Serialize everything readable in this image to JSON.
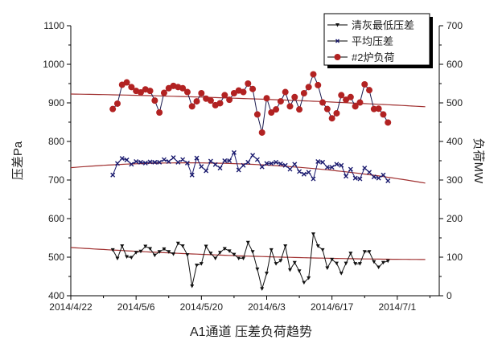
{
  "chart_data": {
    "type": "line",
    "title": "A1通道 压差负荷趋势",
    "xlabel": "",
    "ylabel": "压差Pa",
    "ylabel_right": "负荷MW",
    "xlim": [
      "2014-04-22",
      "2014-07-10"
    ],
    "ylim": [
      400,
      1100
    ],
    "ylim_right": [
      0,
      700
    ],
    "x_ticks": [
      "2014/4/22",
      "2014/5/6",
      "2014/5/20",
      "2014/6/3",
      "2014/6/17",
      "2014/7/1"
    ],
    "x_tick_dates": [
      "2014-04-22",
      "2014-05-06",
      "2014-05-20",
      "2014-06-03",
      "2014-06-17",
      "2014-07-01"
    ],
    "y_ticks": [
      400,
      500,
      600,
      700,
      800,
      900,
      1000,
      1100
    ],
    "y_ticks_right": [
      0,
      100,
      200,
      300,
      400,
      500,
      600,
      700
    ],
    "grid": false,
    "legend_placement": "top-right",
    "start_date": "2014-05-01",
    "series": [
      {
        "name": "清灰最低压差",
        "axis": "left",
        "marker": "triangle-down",
        "color": "#111111",
        "values": [
          519,
          497,
          529,
          501,
          499,
          512,
          515,
          528,
          522,
          505,
          514,
          521,
          514,
          508,
          536,
          529,
          506,
          425,
          479,
          483,
          528,
          510,
          497,
          512,
          522,
          516,
          507,
          497,
          497,
          538,
          514,
          469,
          418,
          458,
          519,
          483,
          491,
          529,
          467,
          486,
          464,
          434,
          446,
          560,
          529,
          519,
          472,
          494,
          484,
          458,
          484,
          510,
          483,
          483,
          514,
          514,
          488,
          474,
          486,
          490
        ],
        "trend": {
          "dates": [
            "2014-04-22",
            "2014-06-01",
            "2014-07-07"
          ],
          "values": [
            525,
            502,
            494
          ],
          "color": "#a03030"
        }
      },
      {
        "name": "平均压差",
        "axis": "left",
        "marker": "x",
        "color": "#1a1a6e",
        "values": [
          713,
          743,
          756,
          752,
          741,
          748,
          746,
          744,
          747,
          746,
          746,
          753,
          748,
          758,
          746,
          753,
          744,
          713,
          757,
          735,
          724,
          749,
          740,
          731,
          750,
          750,
          771,
          726,
          738,
          746,
          764,
          753,
          734,
          743,
          743,
          746,
          742,
          738,
          728,
          741,
          722,
          715,
          720,
          703,
          748,
          746,
          733,
          733,
          741,
          738,
          710,
          728,
          705,
          703,
          731,
          720,
          708,
          705,
          713,
          698
        ],
        "trend": {
          "dates": [
            "2014-04-22",
            "2014-06-01",
            "2014-07-07"
          ],
          "values": [
            732,
            740,
            692
          ],
          "color": "#a03030"
        }
      },
      {
        "name": "#2炉负荷",
        "axis": "right",
        "marker": "circle",
        "color": "#b22222",
        "line_color": "#1a1a4e",
        "values": [
          484,
          498,
          547,
          553,
          541,
          531,
          527,
          535,
          531,
          506,
          475,
          526,
          538,
          544,
          541,
          538,
          528,
          491,
          504,
          525,
          511,
          506,
          494,
          499,
          520,
          508,
          525,
          532,
          528,
          550,
          536,
          470,
          423,
          512,
          475,
          483,
          504,
          528,
          491,
          515,
          483,
          525,
          541,
          574,
          546,
          501,
          484,
          460,
          473,
          520,
          508,
          515,
          491,
          501,
          548,
          533,
          484,
          485,
          470,
          449
        ],
        "trend": {
          "dates": [
            "2014-04-22",
            "2014-06-01",
            "2014-07-07"
          ],
          "values": [
            523,
            510,
            490
          ],
          "color": "#a03030"
        }
      }
    ]
  }
}
